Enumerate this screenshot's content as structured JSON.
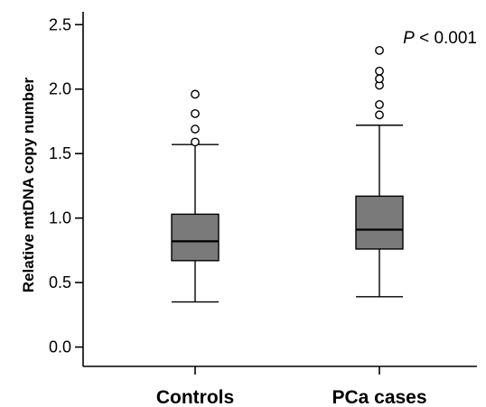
{
  "chart_data": {
    "type": "box",
    "ylabel": "Relative mtDNA copy number",
    "ylim": [
      -0.15,
      2.6
    ],
    "yticks": [
      0.0,
      0.5,
      1.0,
      1.5,
      2.0,
      2.5
    ],
    "ytick_labels": [
      "0.0",
      "0.5",
      "1.0",
      "1.5",
      "2.0",
      "2.5"
    ],
    "categories": [
      "Controls",
      "PCa cases"
    ],
    "boxes": [
      {
        "min": 0.35,
        "q1": 0.67,
        "median": 0.82,
        "q3": 1.03,
        "max": 1.57,
        "outliers": [
          1.59,
          1.69,
          1.81,
          1.96
        ]
      },
      {
        "min": 0.39,
        "q1": 0.76,
        "median": 0.91,
        "q3": 1.17,
        "max": 1.72,
        "outliers": [
          1.8,
          1.88,
          2.03,
          2.08,
          2.14,
          2.3
        ]
      }
    ],
    "annotation": {
      "p_symbol": "P",
      "text": " < 0.001"
    },
    "box_color": "#7a7a7a",
    "grid": false,
    "legend": "none"
  }
}
